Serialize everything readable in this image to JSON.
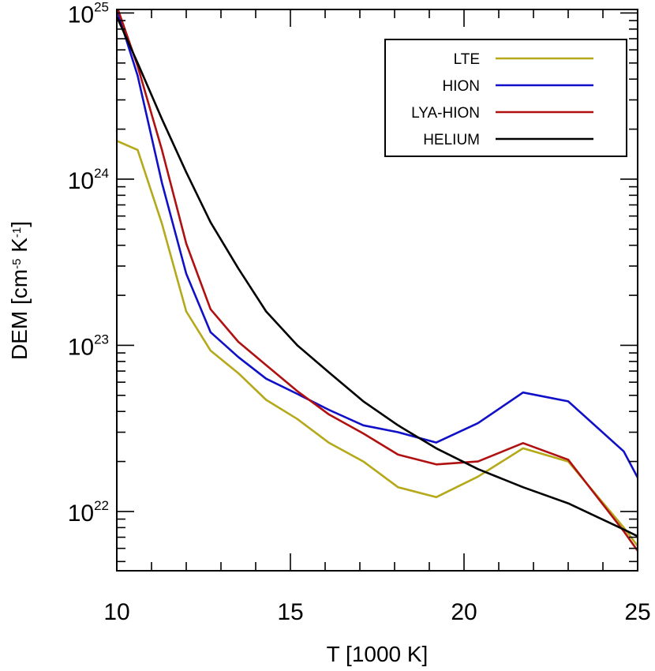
{
  "chart_data": {
    "type": "line",
    "xlabel": "T [1000 K]",
    "ylabel": "DEM [cm-5 K-1]",
    "ylabel_parts": {
      "prefix": "DEM [cm",
      "exp1": "-5",
      "mid": " K",
      "exp2": "-1",
      "suffix": "]"
    },
    "xlim": [
      10,
      25
    ],
    "ylim": [
      4.4e+21,
      1.05e+25
    ],
    "yscale": "log",
    "x_ticks": [
      10,
      15,
      20,
      25
    ],
    "y_ticks": [
      {
        "base": "10",
        "exp": "22",
        "value": 1e+22
      },
      {
        "base": "10",
        "exp": "23",
        "value": 1e+23
      },
      {
        "base": "10",
        "exp": "24",
        "value": 1e+24
      },
      {
        "base": "10",
        "exp": "25",
        "value": 1e+25
      }
    ],
    "legend_position": "top-right",
    "grid": false,
    "series": [
      {
        "name": "LTE",
        "color": "#b5a91a",
        "x": [
          10.0,
          10.6,
          11.3,
          12.0,
          12.7,
          13.5,
          14.3,
          15.2,
          16.1,
          17.1,
          18.1,
          19.2,
          20.4,
          21.7,
          23.0,
          24.6,
          25.0
        ],
        "y": [
          1.7e+24,
          1.5e+24,
          5.4e+23,
          1.6e+23,
          9.3e+22,
          6.8e+22,
          4.7e+22,
          3.6e+22,
          2.6e+22,
          2e+22,
          1.4e+22,
          1.22e+22,
          1.62e+22,
          2.4e+22,
          2e+22,
          8e+21,
          6.2e+21
        ]
      },
      {
        "name": "HION",
        "color": "#1010c8",
        "x": [
          10.0,
          10.6,
          11.3,
          12.0,
          12.7,
          13.5,
          14.3,
          15.2,
          16.1,
          17.1,
          18.1,
          19.2,
          20.4,
          21.7,
          23.0,
          24.6,
          25.0
        ],
        "y": [
          1.05e+25,
          4.2e+24,
          9.5e+23,
          2.7e+23,
          1.2e+23,
          8.5e+22,
          6.3e+22,
          5.1e+22,
          4.1e+22,
          3.3e+22,
          3e+22,
          2.6e+22,
          3.4e+22,
          5.2e+22,
          4.6e+22,
          2.3e+22,
          1.6e+22
        ]
      },
      {
        "name": "LYA-HION",
        "color": "#b01010",
        "x": [
          10.0,
          10.6,
          11.3,
          12.0,
          12.7,
          13.5,
          14.3,
          15.2,
          16.1,
          17.1,
          18.1,
          19.2,
          20.4,
          21.7,
          23.0,
          24.6,
          25.0
        ],
        "y": [
          1.1e+25,
          4.8e+24,
          1.5e+24,
          4.1e+23,
          1.65e+23,
          1.05e+23,
          7.6e+22,
          5.3e+22,
          3.85e+22,
          2.95e+22,
          2.2e+22,
          1.92e+22,
          2e+22,
          2.58e+22,
          2.05e+22,
          7.6e+21,
          5.8e+21
        ]
      },
      {
        "name": "HELIUM",
        "color": "#000000",
        "x": [
          10.0,
          10.6,
          11.3,
          12.0,
          12.7,
          13.5,
          14.3,
          15.2,
          16.1,
          17.1,
          18.1,
          19.2,
          20.4,
          21.7,
          23.0,
          24.6,
          25.0
        ],
        "y": [
          9.5e+24,
          5e+24,
          2.3e+24,
          1.1e+24,
          5.5e+23,
          2.9e+23,
          1.6e+23,
          1e+23,
          6.9e+22,
          4.6e+22,
          3.3e+22,
          2.4e+22,
          1.8e+22,
          1.4e+22,
          1.12e+22,
          7.8e+21,
          7.1e+21
        ]
      }
    ]
  }
}
